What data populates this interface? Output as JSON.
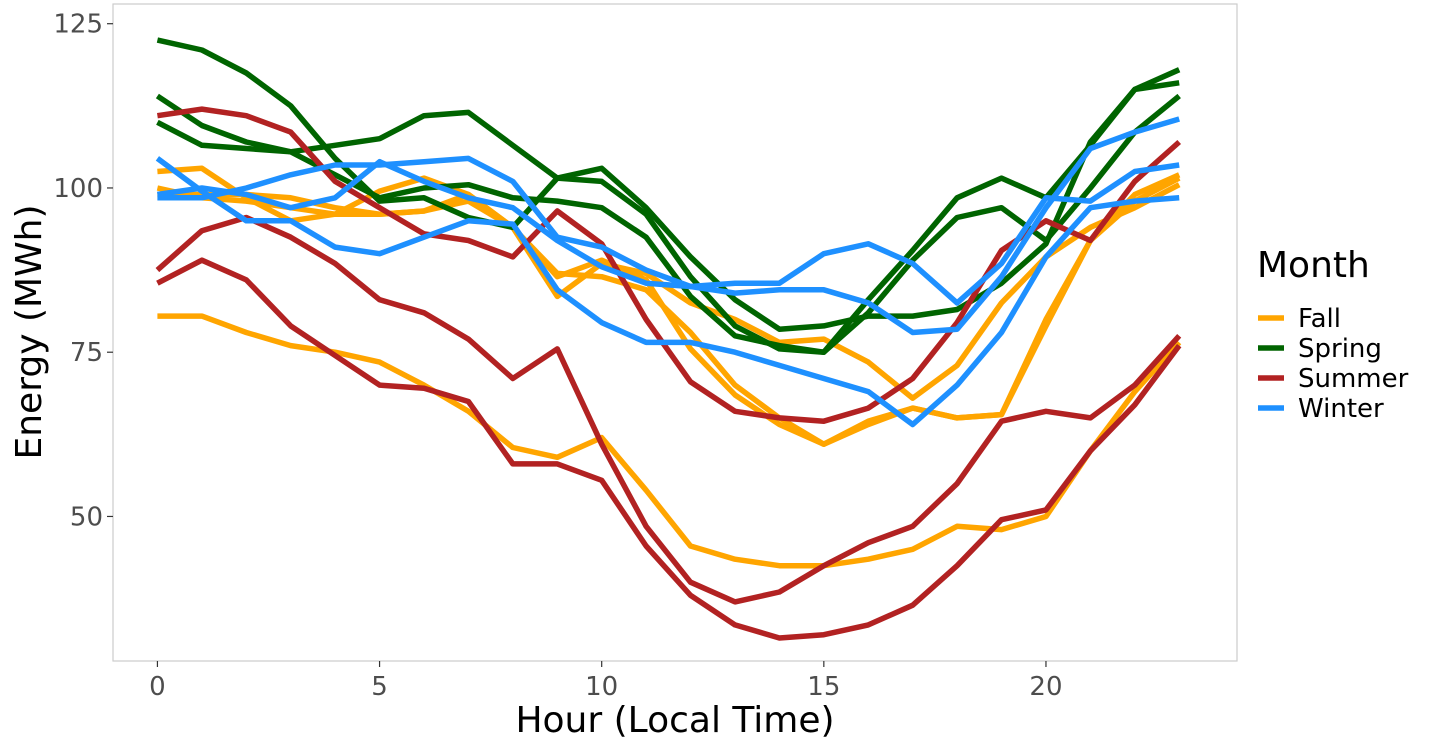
{
  "chart_data": {
    "type": "line",
    "xlabel": "Hour (Local Time)",
    "ylabel": "Energy (MWh)",
    "xlim": [
      -1,
      24.3
    ],
    "ylim": [
      28,
      128
    ],
    "x_ticks": [
      0,
      5,
      10,
      15,
      20
    ],
    "y_ticks": [
      50,
      75,
      100,
      125
    ],
    "grid": false,
    "legend": {
      "title": "Month",
      "position": "right",
      "entries": [
        {
          "label": "Fall",
          "color": "#FFA500"
        },
        {
          "label": "Spring",
          "color": "#006400"
        },
        {
          "label": "Summer",
          "color": "#B22222"
        },
        {
          "label": "Winter",
          "color": "#1E90FF"
        }
      ]
    },
    "x": [
      0,
      1,
      2,
      3,
      4,
      5,
      6,
      7,
      8,
      9,
      10,
      11,
      12,
      13,
      14,
      15,
      16,
      17,
      18,
      19,
      20,
      21,
      22,
      23
    ],
    "series": [
      {
        "group": "Fall",
        "color": "#FFA500",
        "values": [
          102.5,
          103,
          98.5,
          95,
          96,
          99.5,
          101.5,
          99,
          94,
          83.5,
          88.5,
          87,
          82.5,
          80,
          76.5,
          77,
          73.5,
          68,
          73,
          82.5,
          89.5,
          94,
          97,
          100.5
        ]
      },
      {
        "group": "Fall",
        "color": "#FFA500",
        "values": [
          100,
          98.5,
          98,
          97,
          96,
          96,
          96.5,
          98,
          94,
          86.5,
          89,
          86,
          75.5,
          68.5,
          64,
          61,
          64.5,
          66.5,
          65,
          65.5,
          80,
          92,
          99,
          102
        ]
      },
      {
        "group": "Fall",
        "color": "#FFA500",
        "values": [
          80.5,
          80.5,
          78,
          76,
          75,
          73.5,
          70,
          66,
          60.5,
          59,
          62,
          54,
          45.5,
          43.5,
          42.5,
          42.5,
          43.5,
          45,
          48.5,
          48,
          50,
          60,
          69,
          76.5
        ]
      },
      {
        "group": "Fall",
        "color": "#FFA500",
        "values": [
          99,
          99,
          99,
          98.5,
          97,
          96,
          96.5,
          99,
          94,
          87,
          86.5,
          84.5,
          78,
          70,
          65,
          61,
          64,
          66.5,
          65,
          65.5,
          79,
          92,
          98,
          101.5
        ]
      },
      {
        "group": "Spring",
        "color": "#006400",
        "values": [
          122.5,
          121,
          117.5,
          112.5,
          104.5,
          98,
          98.5,
          95.5,
          94,
          101.5,
          103,
          97,
          89.5,
          83,
          78.5,
          79,
          80.5,
          80.5,
          81.5,
          85.5,
          91.5,
          107,
          115,
          116
        ]
      },
      {
        "group": "Spring",
        "color": "#006400",
        "values": [
          114,
          109.5,
          107,
          105.5,
          106.5,
          107.5,
          111,
          111.5,
          106.5,
          101.5,
          101,
          96,
          86.5,
          79,
          75.5,
          75,
          83,
          90.5,
          98.5,
          101.5,
          98.5,
          106.5,
          115,
          118
        ]
      },
      {
        "group": "Spring",
        "color": "#006400",
        "values": [
          110,
          106.5,
          106,
          105.5,
          102,
          98.5,
          100,
          100.5,
          98.5,
          98,
          97,
          92.5,
          83.5,
          77.5,
          76,
          75,
          81,
          89,
          95.5,
          97,
          92,
          100,
          108.5,
          114
        ]
      },
      {
        "group": "Summer",
        "color": "#B22222",
        "values": [
          111,
          112,
          111,
          108.5,
          101,
          97,
          93,
          92,
          89.5,
          96.5,
          91.5,
          80,
          70.5,
          66,
          65,
          64.5,
          66.5,
          71,
          79.5,
          90.5,
          95,
          92,
          101,
          107
        ]
      },
      {
        "group": "Summer",
        "color": "#B22222",
        "values": [
          87.5,
          93.5,
          95.5,
          92.5,
          88.5,
          83,
          81,
          77,
          71,
          75.5,
          61,
          48.5,
          40,
          37,
          38.5,
          42.5,
          46,
          48.5,
          55,
          64.5,
          66,
          65,
          70,
          77.5
        ]
      },
      {
        "group": "Summer",
        "color": "#B22222",
        "values": [
          85.5,
          89,
          86,
          79,
          74.5,
          70,
          69.5,
          67.5,
          58,
          58,
          55.5,
          45.5,
          38,
          33.5,
          31.5,
          32,
          33.5,
          36.5,
          42.5,
          49.5,
          51,
          60,
          67,
          76
        ]
      },
      {
        "group": "Winter",
        "color": "#1E90FF",
        "values": [
          104.5,
          99.5,
          95,
          95,
          91,
          90,
          92.5,
          95,
          94.5,
          84.5,
          79.5,
          76.5,
          76.5,
          75,
          73,
          71,
          69,
          64,
          70,
          78,
          89.5,
          97,
          98,
          98.5
        ]
      },
      {
        "group": "Winter",
        "color": "#1E90FF",
        "values": [
          98.5,
          98.5,
          100,
          102,
          103.5,
          103.5,
          104,
          104.5,
          101,
          92.5,
          91,
          87.5,
          85,
          84,
          84.5,
          84.5,
          82.5,
          78,
          78.5,
          86.5,
          97,
          106,
          108.5,
          110.5
        ]
      },
      {
        "group": "Winter",
        "color": "#1E90FF",
        "values": [
          99,
          100,
          99,
          97,
          98.5,
          104,
          101,
          98.5,
          97,
          92,
          88,
          85.5,
          85,
          85.5,
          85.5,
          90,
          91.5,
          88.5,
          82.5,
          88.5,
          98.5,
          98,
          102.5,
          103.5
        ]
      }
    ]
  }
}
